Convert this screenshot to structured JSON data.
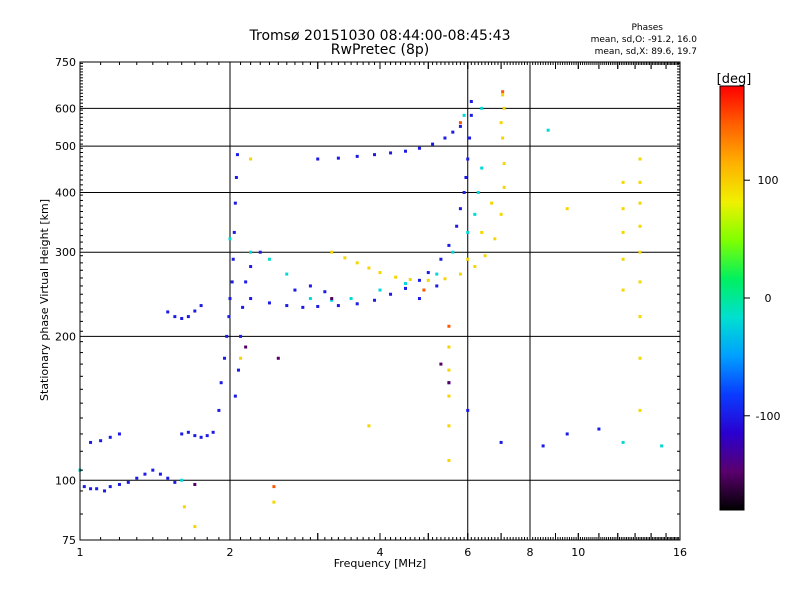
{
  "chart_data": {
    "type": "scatter",
    "title": "Tromsø 20151030 08:44:00-08:45:43",
    "subtitle": "RwPretec (8p)",
    "xlabel": "Frequency [MHz]",
    "ylabel": "Stationary phase Virtual Height [km]",
    "xscale": "log",
    "yscale": "log",
    "xlim": [
      1,
      16
    ],
    "ylim": [
      75,
      750
    ],
    "grid": true,
    "xticks": [
      1,
      2,
      4,
      6,
      8,
      10,
      16
    ],
    "yticks": [
      75,
      100,
      200,
      300,
      400,
      500,
      600,
      750
    ],
    "x_major_gridlines": [
      2,
      6,
      8
    ],
    "y_major_gridlines": [
      100,
      200,
      300,
      400,
      500,
      600
    ],
    "phase_stats": {
      "heading": "Phases",
      "line_o": "mean, sd,O: -91.2, 16.0",
      "line_x": "mean, sd,X:  89.6, 19.7"
    },
    "colorbar": {
      "label": "[deg]",
      "range": [
        -180,
        180
      ],
      "ticks": [
        100,
        0,
        -100
      ],
      "colormap": [
        "#000000",
        "#5a006e",
        "#2a00d0",
        "#0a3cff",
        "#00a0ff",
        "#00e0d0",
        "#00f060",
        "#80ff00",
        "#f0f000",
        "#ffb000",
        "#ff6000",
        "#ff0000"
      ]
    },
    "series": [
      {
        "phase_deg": -100,
        "points": [
          [
            1.02,
            97
          ],
          [
            1.05,
            96
          ],
          [
            1.08,
            96
          ],
          [
            1.12,
            95
          ],
          [
            1.15,
            97
          ],
          [
            1.2,
            98
          ],
          [
            1.25,
            99
          ],
          [
            1.3,
            101
          ],
          [
            1.35,
            103
          ],
          [
            1.4,
            105
          ],
          [
            1.45,
            103
          ],
          [
            1.5,
            101
          ],
          [
            1.55,
            99
          ],
          [
            1.05,
            120
          ],
          [
            1.1,
            121
          ],
          [
            1.15,
            123
          ],
          [
            1.2,
            125
          ],
          [
            1.6,
            125
          ],
          [
            1.65,
            126
          ],
          [
            1.7,
            124
          ],
          [
            1.75,
            123
          ],
          [
            1.8,
            124
          ],
          [
            1.85,
            126
          ],
          [
            1.5,
            225
          ],
          [
            1.55,
            220
          ],
          [
            1.6,
            218
          ],
          [
            1.65,
            220
          ],
          [
            1.7,
            226
          ],
          [
            1.75,
            232
          ],
          [
            1.9,
            140
          ],
          [
            1.92,
            160
          ],
          [
            1.95,
            180
          ],
          [
            1.97,
            200
          ],
          [
            1.99,
            220
          ],
          [
            2.0,
            240
          ],
          [
            2.02,
            260
          ],
          [
            2.03,
            290
          ],
          [
            2.04,
            330
          ],
          [
            2.05,
            380
          ],
          [
            2.06,
            430
          ],
          [
            2.07,
            480
          ],
          [
            2.05,
            150
          ],
          [
            2.08,
            170
          ],
          [
            2.1,
            200
          ],
          [
            2.12,
            230
          ],
          [
            2.15,
            260
          ],
          [
            2.2,
            280
          ],
          [
            2.3,
            300
          ],
          [
            2.2,
            240
          ],
          [
            2.4,
            235
          ],
          [
            2.6,
            232
          ],
          [
            2.8,
            230
          ],
          [
            3.0,
            231
          ],
          [
            3.3,
            232
          ],
          [
            3.6,
            234
          ],
          [
            3.9,
            238
          ],
          [
            4.2,
            245
          ],
          [
            4.5,
            252
          ],
          [
            4.8,
            262
          ],
          [
            5.0,
            272
          ],
          [
            5.3,
            290
          ],
          [
            5.5,
            310
          ],
          [
            5.7,
            340
          ],
          [
            5.8,
            370
          ],
          [
            5.9,
            400
          ],
          [
            5.95,
            430
          ],
          [
            6.0,
            470
          ],
          [
            6.05,
            520
          ],
          [
            6.1,
            580
          ],
          [
            6.1,
            620
          ],
          [
            3.0,
            470
          ],
          [
            3.3,
            472
          ],
          [
            3.6,
            476
          ],
          [
            3.9,
            480
          ],
          [
            4.2,
            484
          ],
          [
            4.5,
            488
          ],
          [
            4.8,
            495
          ],
          [
            5.1,
            505
          ],
          [
            5.4,
            520
          ],
          [
            5.6,
            535
          ],
          [
            5.8,
            550
          ],
          [
            2.7,
            250
          ],
          [
            2.9,
            255
          ],
          [
            3.1,
            248
          ],
          [
            4.8,
            240
          ],
          [
            5.2,
            255
          ],
          [
            5.5,
            160
          ],
          [
            6.0,
            140
          ],
          [
            7.0,
            120
          ],
          [
            8.5,
            118
          ],
          [
            9.5,
            125
          ],
          [
            11.0,
            128
          ]
        ]
      },
      {
        "phase_deg": -20,
        "points": [
          [
            2.0,
            320
          ],
          [
            2.2,
            300
          ],
          [
            2.4,
            290
          ],
          [
            2.6,
            270
          ],
          [
            2.9,
            240
          ],
          [
            3.2,
            238
          ],
          [
            3.5,
            240
          ],
          [
            4.0,
            250
          ],
          [
            4.5,
            258
          ],
          [
            5.2,
            270
          ],
          [
            5.6,
            300
          ],
          [
            6.0,
            330
          ],
          [
            6.2,
            360
          ],
          [
            6.3,
            400
          ],
          [
            6.4,
            450
          ],
          [
            5.9,
            580
          ],
          [
            6.4,
            600
          ],
          [
            1.0,
            105
          ],
          [
            1.6,
            100
          ],
          [
            8.7,
            540
          ],
          [
            12.3,
            120
          ],
          [
            14.7,
            118
          ]
        ]
      },
      {
        "phase_deg": 95,
        "points": [
          [
            3.2,
            300
          ],
          [
            3.4,
            292
          ],
          [
            3.6,
            285
          ],
          [
            3.8,
            278
          ],
          [
            4.0,
            272
          ],
          [
            4.3,
            266
          ],
          [
            4.6,
            263
          ],
          [
            5.0,
            262
          ],
          [
            5.4,
            264
          ],
          [
            5.8,
            270
          ],
          [
            6.2,
            280
          ],
          [
            6.5,
            295
          ],
          [
            6.8,
            320
          ],
          [
            7.0,
            360
          ],
          [
            7.1,
            410
          ],
          [
            7.1,
            460
          ],
          [
            7.05,
            520
          ],
          [
            7.0,
            560
          ],
          [
            7.1,
            600
          ],
          [
            7.05,
            640
          ],
          [
            6.0,
            290
          ],
          [
            6.4,
            330
          ],
          [
            6.7,
            380
          ],
          [
            5.5,
            190
          ],
          [
            5.5,
            170
          ],
          [
            5.5,
            150
          ],
          [
            5.5,
            130
          ],
          [
            5.5,
            110
          ],
          [
            12.3,
            420
          ],
          [
            12.3,
            370
          ],
          [
            12.3,
            330
          ],
          [
            12.3,
            290
          ],
          [
            12.3,
            250
          ],
          [
            13.3,
            470
          ],
          [
            13.3,
            420
          ],
          [
            13.3,
            380
          ],
          [
            13.3,
            340
          ],
          [
            13.3,
            300
          ],
          [
            13.3,
            260
          ],
          [
            13.3,
            220
          ],
          [
            13.3,
            180
          ],
          [
            13.3,
            140
          ],
          [
            9.5,
            370
          ],
          [
            3.8,
            130
          ],
          [
            2.1,
            180
          ],
          [
            1.62,
            88
          ],
          [
            1.7,
            80
          ],
          [
            2.45,
            90
          ],
          [
            2.2,
            470
          ]
        ]
      },
      {
        "phase_deg": 150,
        "points": [
          [
            2.45,
            97
          ],
          [
            7.05,
            650
          ],
          [
            5.8,
            560
          ],
          [
            4.9,
            250
          ],
          [
            5.5,
            210
          ]
        ]
      },
      {
        "phase_deg": -150,
        "points": [
          [
            2.5,
            180
          ],
          [
            3.2,
            240
          ],
          [
            5.3,
            175
          ],
          [
            5.5,
            160
          ],
          [
            2.15,
            190
          ],
          [
            1.7,
            98
          ]
        ]
      }
    ]
  }
}
